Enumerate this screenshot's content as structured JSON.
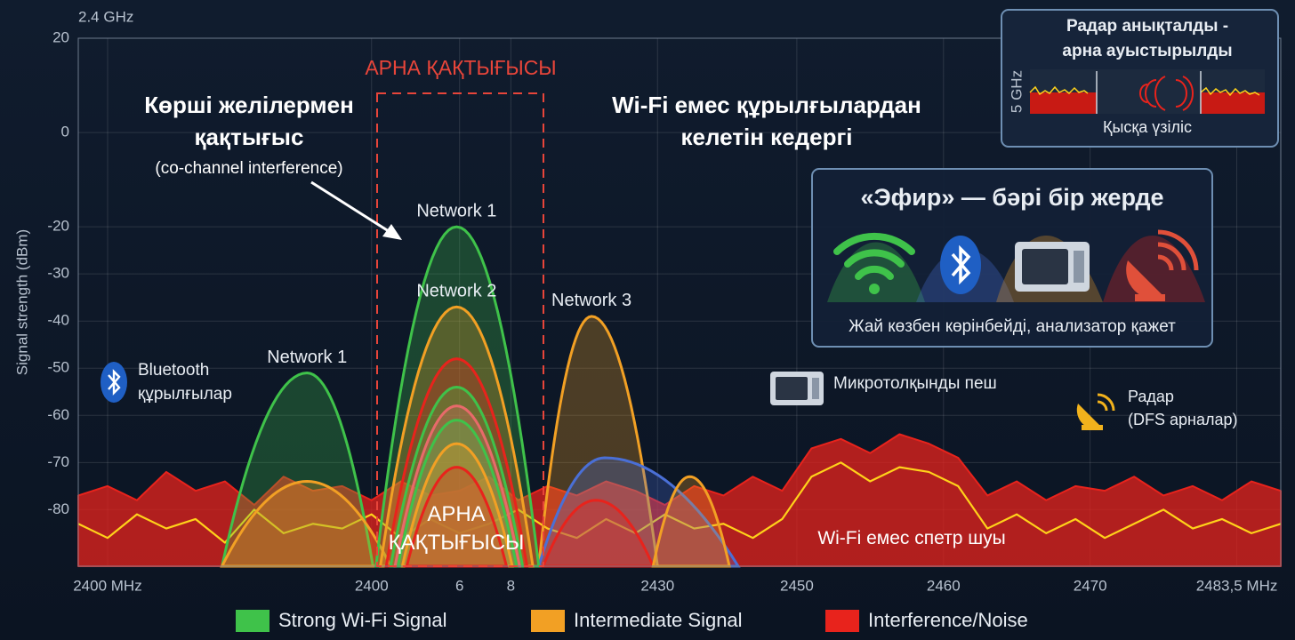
{
  "chart_data": {
    "type": "area",
    "band_label": "2.4 GHz",
    "y_label": "Signal strength (dBm)",
    "ylim": [
      -92,
      20
    ],
    "yticks": [
      20,
      0,
      -20,
      -30,
      -40,
      -50,
      -60,
      -70,
      -80
    ],
    "xlim": [
      2401,
      2483
    ],
    "xticks": [
      {
        "value": 2403,
        "label": "2400 MHz"
      },
      {
        "value": 2421,
        "label": "2400"
      },
      {
        "value": 2427,
        "label": "6"
      },
      {
        "value": 2430.5,
        "label": "8"
      },
      {
        "value": 2440.5,
        "label": "2430"
      },
      {
        "value": 2450,
        "label": "2450"
      },
      {
        "value": 2460,
        "label": "2460"
      },
      {
        "value": 2470,
        "label": "2470"
      },
      {
        "value": 2480,
        "label": "2483,5 MHz"
      }
    ],
    "grid": true,
    "legend": [
      {
        "name": "Strong Wi-Fi Signal",
        "color": "#3fc24a"
      },
      {
        "name": "Intermediate Signal",
        "color": "#f2a024"
      },
      {
        "name": "Interference/Noise",
        "color": "#e8231c"
      }
    ],
    "noise": {
      "x": [
        2401,
        2403,
        2405,
        2407,
        2409,
        2411,
        2413,
        2415,
        2417,
        2419,
        2421,
        2423,
        2425,
        2427,
        2429,
        2431,
        2433,
        2435,
        2437,
        2439,
        2441,
        2443,
        2445,
        2447,
        2449,
        2451,
        2453,
        2455,
        2457,
        2459,
        2461,
        2463,
        2465,
        2467,
        2469,
        2471,
        2473,
        2475,
        2477,
        2479,
        2481,
        2483
      ],
      "series": [
        {
          "color": "#e8231c",
          "values": [
            -77,
            -75,
            -78,
            -72,
            -76,
            -74,
            -79,
            -73,
            -76,
            -75,
            -78,
            -74,
            -77,
            -76,
            -73,
            -78,
            -75,
            -77,
            -74,
            -76,
            -79,
            -75,
            -77,
            -73,
            -76,
            -67,
            -65,
            -68,
            -64,
            -66,
            -69,
            -77,
            -74,
            -78,
            -75,
            -76,
            -73,
            -77,
            -75,
            -78,
            -74,
            -76
          ]
        },
        {
          "color": "#ffd21a",
          "values": [
            -83,
            -86,
            -81,
            -84,
            -82,
            -87,
            -80,
            -85,
            -83,
            -84,
            -81,
            -86,
            -82,
            -85,
            -83,
            -80,
            -84,
            -86,
            -82,
            -85,
            -81,
            -84,
            -83,
            -86,
            -82,
            -73,
            -70,
            -74,
            -71,
            -72,
            -75,
            -84,
            -81,
            -85,
            -82,
            -86,
            -83,
            -80,
            -84,
            -82,
            -85,
            -83
          ]
        }
      ]
    },
    "humps": [
      {
        "label": "Network 1",
        "color": "#3fc24a",
        "x": [
          2410.8,
          2416.6,
          2421.1
        ],
        "peak": -51
      },
      {
        "color": "#f2a024",
        "x": [
          2410.8,
          2416.6,
          2422.3
        ],
        "peak": -74
      },
      {
        "label": "Network 3",
        "color": "#f2a024",
        "x": [
          2432.4,
          2436.0,
          2440.5
        ],
        "peak": -39
      },
      {
        "color": "#4a6fd6",
        "x": [
          2432.4,
          2436.9,
          2446.0
        ],
        "peak": -69
      },
      {
        "color": "#e8231c",
        "x": [
          2432.7,
          2436.3,
          2440.2
        ],
        "peak": -78
      },
      {
        "color": "#f2a024",
        "x": [
          2440.2,
          2442.7,
          2445.4
        ],
        "peak": -73
      },
      {
        "label": "Network 1",
        "color": "#3fc24a",
        "x": [
          2421.3,
          2426.8,
          2432.4
        ],
        "peak": -20
      },
      {
        "label": "Network 2",
        "color": "#f2a024",
        "x": [
          2421.6,
          2426.8,
          2432.0
        ],
        "peak": -37
      },
      {
        "color": "#e8231c",
        "x": [
          2422.0,
          2426.8,
          2431.6
        ],
        "peak": -48
      },
      {
        "color": "#3fc24a",
        "x": [
          2422.3,
          2426.8,
          2431.3
        ],
        "peak": -54
      },
      {
        "color": "#e86a6a",
        "x": [
          2422.6,
          2426.8,
          2431.1
        ],
        "peak": -58
      },
      {
        "color": "#3fc24a",
        "x": [
          2422.8,
          2426.8,
          2430.9
        ],
        "peak": -61
      },
      {
        "color": "#f2a024",
        "x": [
          2423.1,
          2426.8,
          2430.6
        ],
        "peak": -66
      },
      {
        "color": "#e8231c",
        "x": [
          2423.4,
          2426.8,
          2430.2
        ],
        "peak": -71
      }
    ],
    "annotations": [
      {
        "lines": [
          "АРНА ҚАҚТЫҒЫСЫ"
        ]
      },
      {
        "lines": [
          "Көрші желілермен",
          "қақтығыс"
        ]
      },
      {
        "lines": [
          "(co-channel interference)"
        ]
      },
      {
        "lines": [
          "Wi-Fi емес құрылғылардан",
          "келетін кедергі"
        ]
      },
      {
        "lines": [
          "Bluetooth",
          "құрылғылар"
        ]
      },
      {
        "lines": [
          "Микротолқынды пеш"
        ]
      },
      {
        "lines": [
          "Радар",
          "(DFS арналар)"
        ]
      },
      {
        "lines": [
          "АРНА",
          "ҚАҚТЫҒЫСЫ"
        ]
      },
      {
        "lines": [
          "Wi-Fi емес спетр шуы"
        ]
      }
    ],
    "inset": {
      "title_lines": [
        "Радар анықталды -",
        "арна ауыстырылды"
      ],
      "axis_label": "5 GHz",
      "caption": "Қысқа үзіліс"
    },
    "panel": {
      "title": "«Эфир» — бәрі бір жерде",
      "caption": "Жай көзбен көрінбейді, анализатор қажет"
    }
  }
}
